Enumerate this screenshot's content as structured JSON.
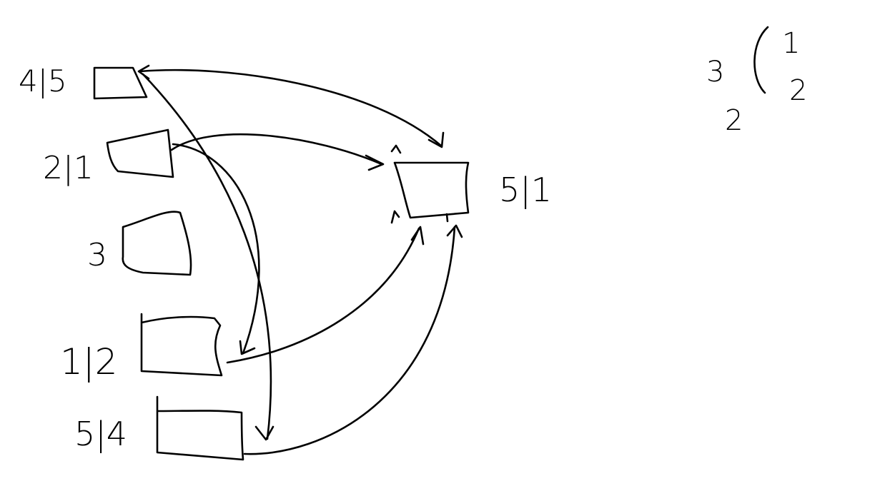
{
  "ink_color": "#000000",
  "background_color": "#ffffff",
  "nodes": [
    {
      "id": "n45",
      "label": "4|5"
    },
    {
      "id": "n21",
      "label": "2|1"
    },
    {
      "id": "n3",
      "label": "3"
    },
    {
      "id": "n12",
      "label": "1|2"
    },
    {
      "id": "n54",
      "label": "5|4"
    },
    {
      "id": "n51",
      "label": "5|1"
    }
  ],
  "edges": [
    {
      "from": "n45",
      "to": "n51",
      "arrows": "both"
    },
    {
      "from": "n21",
      "to": "n51",
      "arrows": "end"
    },
    {
      "from": "n21",
      "to": "n12",
      "arrows": "end"
    },
    {
      "from": "n45",
      "to": "n54",
      "arrows": "both"
    },
    {
      "from": "n12",
      "to": "n51",
      "arrows": "end"
    },
    {
      "from": "n54",
      "to": "n51",
      "arrows": "end"
    }
  ],
  "note": {
    "left_top": "3",
    "left_bottom": "2",
    "right_top": "1",
    "right_bottom": "2"
  }
}
